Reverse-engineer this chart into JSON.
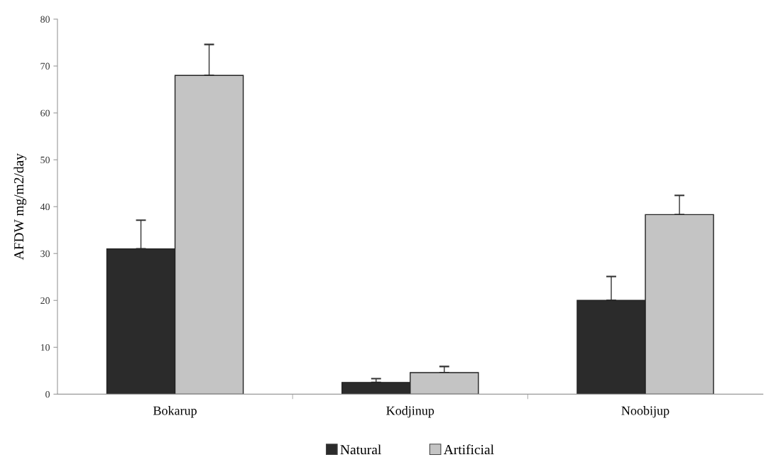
{
  "chart_data": {
    "type": "bar",
    "ylabel": "AFDW mg/m2/day",
    "categories": [
      "Bokarup",
      "Kodjinup",
      "Noobijup"
    ],
    "series": [
      {
        "name": "Natural",
        "color": "#2b2b2b",
        "values": [
          31,
          2.5,
          20
        ],
        "errors": [
          [
            31,
            37.1
          ],
          [
            2.5,
            3.3
          ],
          [
            20,
            25.1
          ]
        ]
      },
      {
        "name": "Artificial",
        "color": "#c4c4c4",
        "values": [
          68,
          4.6,
          38.3
        ],
        "errors": [
          [
            68,
            74.6
          ],
          [
            4.6,
            5.9
          ],
          [
            38.3,
            42.4
          ]
        ]
      }
    ],
    "ylim": [
      0,
      80
    ],
    "yticks": [
      0,
      10,
      20,
      30,
      40,
      50,
      60,
      70,
      80
    ],
    "grid": false,
    "legend": "bottom"
  }
}
